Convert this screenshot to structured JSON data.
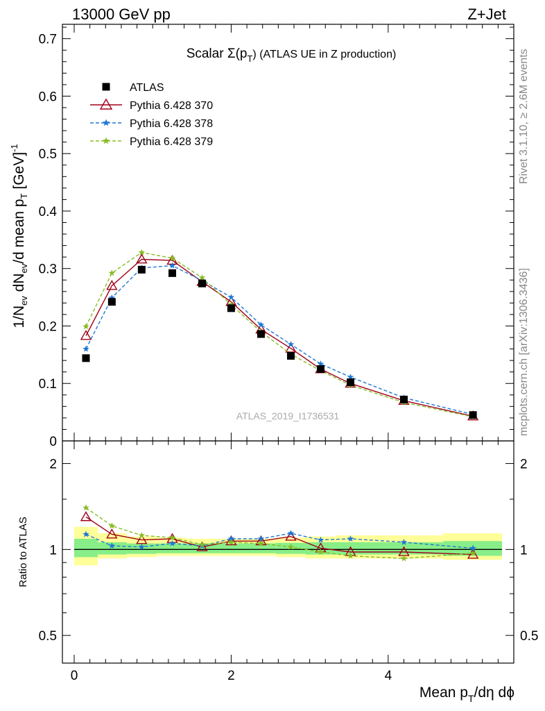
{
  "header": {
    "left": "13000 GeV pp",
    "right": "Z+Jet"
  },
  "side_text": {
    "rivet": "Rivet 3.1.10, ≥ 2.6M events",
    "mcplots": "mcplots.cern.ch [arXiv:1306.3436]"
  },
  "chart_data": [
    {
      "type": "line",
      "title_main": "Scalar Σ(p",
      "title_sub": "T",
      "title_rest": ") (ATLAS UE in Z production)",
      "ylabel": "1/N_ev dN_ev/d mean p_T [GeV]^-1",
      "ylabel_parts": {
        "a": "1/N",
        "b": "ev",
        "c": " dN",
        "d": "ev",
        "e": "/d mean p",
        "f": "T",
        "g": " [GeV]",
        "h": "-1"
      },
      "watermark": "ATLAS_2019_I1736531",
      "xlim": [
        -0.15,
        5.6
      ],
      "ylim": [
        0,
        0.725
      ],
      "yticks": [
        0,
        0.1,
        0.2,
        0.3,
        0.4,
        0.5,
        0.6,
        0.7
      ],
      "ytick_labels": [
        "0",
        "0.1",
        "0.2",
        "0.3",
        "0.4",
        "0.5",
        "0.6",
        "0.7"
      ],
      "legend_position": "top-left",
      "x": [
        0.15,
        0.48,
        0.86,
        1.25,
        1.63,
        2.0,
        2.38,
        2.76,
        3.14,
        3.52,
        4.2,
        5.08
      ],
      "series": [
        {
          "name": "ATLAS",
          "color": "#000000",
          "marker": "square",
          "line": "none",
          "values": [
            0.144,
            0.242,
            0.298,
            0.292,
            0.274,
            0.231,
            0.186,
            0.148,
            0.125,
            0.102,
            0.072,
            0.045
          ]
        },
        {
          "name": "Pythia 6.428 370",
          "color": "#a00018",
          "marker": "open-triangle",
          "line": "solid",
          "values": [
            0.183,
            0.27,
            0.316,
            0.314,
            0.277,
            0.242,
            0.194,
            0.161,
            0.125,
            0.1,
            0.07,
            0.043
          ]
        },
        {
          "name": "Pythia 6.428 378",
          "color": "#1f77d4",
          "marker": "star",
          "line": "dashed",
          "values": [
            0.16,
            0.249,
            0.301,
            0.305,
            0.279,
            0.25,
            0.202,
            0.168,
            0.134,
            0.111,
            0.075,
            0.046
          ]
        },
        {
          "name": "Pythia 6.428 379",
          "color": "#88bb22",
          "marker": "star",
          "line": "dashed",
          "values": [
            0.199,
            0.292,
            0.328,
            0.318,
            0.284,
            0.237,
            0.19,
            0.151,
            0.122,
            0.097,
            0.067,
            0.042
          ]
        }
      ]
    },
    {
      "type": "line",
      "ylabel": "Ratio to ATLAS",
      "xlabel_parts": {
        "a": "Mean p",
        "b": "T",
        "c": "/dη dϕ"
      },
      "xlim": [
        -0.15,
        5.6
      ],
      "ylim": [
        0.4,
        2.4
      ],
      "log_y": true,
      "yticks": [
        0.5,
        1,
        2
      ],
      "ytick_labels": [
        "0.5",
        "1",
        "2"
      ],
      "xticks": [
        0,
        2,
        4
      ],
      "xtick_labels": [
        "0",
        "2",
        "4"
      ],
      "bands": {
        "edges": [
          0.0,
          0.3,
          0.67,
          1.05,
          1.44,
          1.82,
          2.19,
          2.57,
          2.95,
          3.33,
          3.71,
          4.7,
          5.45
        ],
        "inner": [
          [
            0.94,
            1.09
          ],
          [
            0.96,
            1.06
          ],
          [
            0.965,
            1.05
          ],
          [
            0.97,
            1.05
          ],
          [
            0.97,
            1.05
          ],
          [
            0.97,
            1.05
          ],
          [
            0.97,
            1.05
          ],
          [
            0.965,
            1.055
          ],
          [
            0.96,
            1.06
          ],
          [
            0.96,
            1.06
          ],
          [
            0.96,
            1.06
          ],
          [
            0.95,
            1.07
          ]
        ],
        "outer": [
          [
            0.88,
            1.2
          ],
          [
            0.93,
            1.14
          ],
          [
            0.94,
            1.11
          ],
          [
            0.95,
            1.1
          ],
          [
            0.95,
            1.09
          ],
          [
            0.95,
            1.09
          ],
          [
            0.95,
            1.09
          ],
          [
            0.94,
            1.1
          ],
          [
            0.93,
            1.11
          ],
          [
            0.93,
            1.12
          ],
          [
            0.93,
            1.12
          ],
          [
            0.92,
            1.14
          ]
        ],
        "inner_color": "#88ee88",
        "outer_color": "#ffff99"
      },
      "x": [
        0.15,
        0.48,
        0.86,
        1.25,
        1.63,
        2.0,
        2.38,
        2.76,
        3.14,
        3.52,
        4.2,
        5.08
      ],
      "series": [
        {
          "name": "Pythia 6.428 370",
          "color": "#a00018",
          "marker": "open-triangle",
          "line": "solid",
          "values": [
            1.3,
            1.13,
            1.08,
            1.09,
            1.02,
            1.07,
            1.07,
            1.11,
            1.01,
            0.98,
            0.98,
            0.96
          ]
        },
        {
          "name": "Pythia 6.428 378",
          "color": "#1f77d4",
          "marker": "star",
          "line": "dashed",
          "values": [
            1.13,
            1.03,
            1.02,
            1.05,
            1.03,
            1.09,
            1.09,
            1.14,
            1.08,
            1.09,
            1.06,
            1.01
          ]
        },
        {
          "name": "Pythia 6.428 379",
          "color": "#88bb22",
          "marker": "star",
          "line": "dashed",
          "values": [
            1.4,
            1.21,
            1.12,
            1.1,
            1.04,
            1.06,
            1.05,
            1.02,
            0.98,
            0.95,
            0.93,
            0.97
          ]
        }
      ]
    }
  ]
}
